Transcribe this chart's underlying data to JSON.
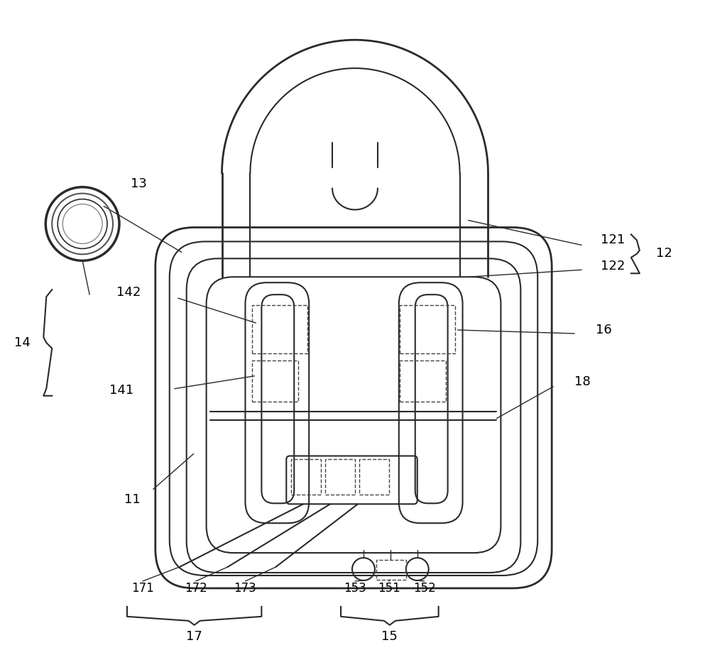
{
  "bg_color": "#ffffff",
  "line_color": "#2a2a2a",
  "dashed_color": "#444444",
  "figsize": [
    10.0,
    9.47
  ],
  "dpi": 100
}
